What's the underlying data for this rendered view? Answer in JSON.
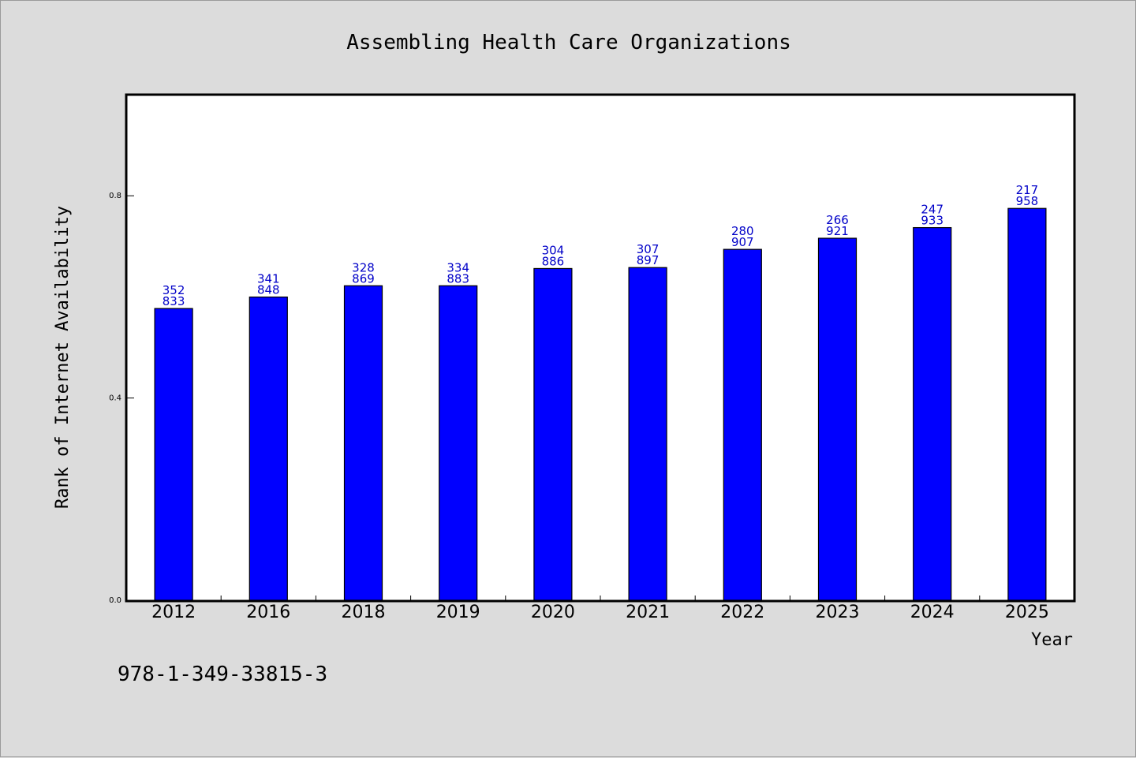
{
  "chart_data": {
    "type": "bar",
    "title": "Assembling Health Care Organizations",
    "xlabel": "Year",
    "ylabel": "Rank of Internet Availability",
    "categories": [
      "2012",
      "2016",
      "2018",
      "2019",
      "2020",
      "2021",
      "2022",
      "2023",
      "2024",
      "2025"
    ],
    "values": [
      0.577,
      0.5997,
      0.622,
      0.622,
      0.6561,
      0.658,
      0.694,
      0.716,
      0.737,
      0.775
    ],
    "data_labels": [
      [
        "352",
        "833"
      ],
      [
        "341",
        "848"
      ],
      [
        "328",
        "869"
      ],
      [
        "334",
        "883"
      ],
      [
        "304",
        "886"
      ],
      [
        "307",
        "897"
      ],
      [
        "280",
        "907"
      ],
      [
        "266",
        "921"
      ],
      [
        "247",
        "933"
      ],
      [
        "217",
        "958"
      ]
    ],
    "yticks": [
      0.0,
      0.4,
      0.8
    ],
    "ytick_labels": [
      "0.0",
      "0.4",
      "0.8"
    ],
    "ylim": [
      0,
      1.0
    ],
    "grid": false,
    "legend": "none",
    "bar_color": "#0000ff",
    "label_color": "#0000c8"
  },
  "footer_text": "978-1-349-33815-3"
}
